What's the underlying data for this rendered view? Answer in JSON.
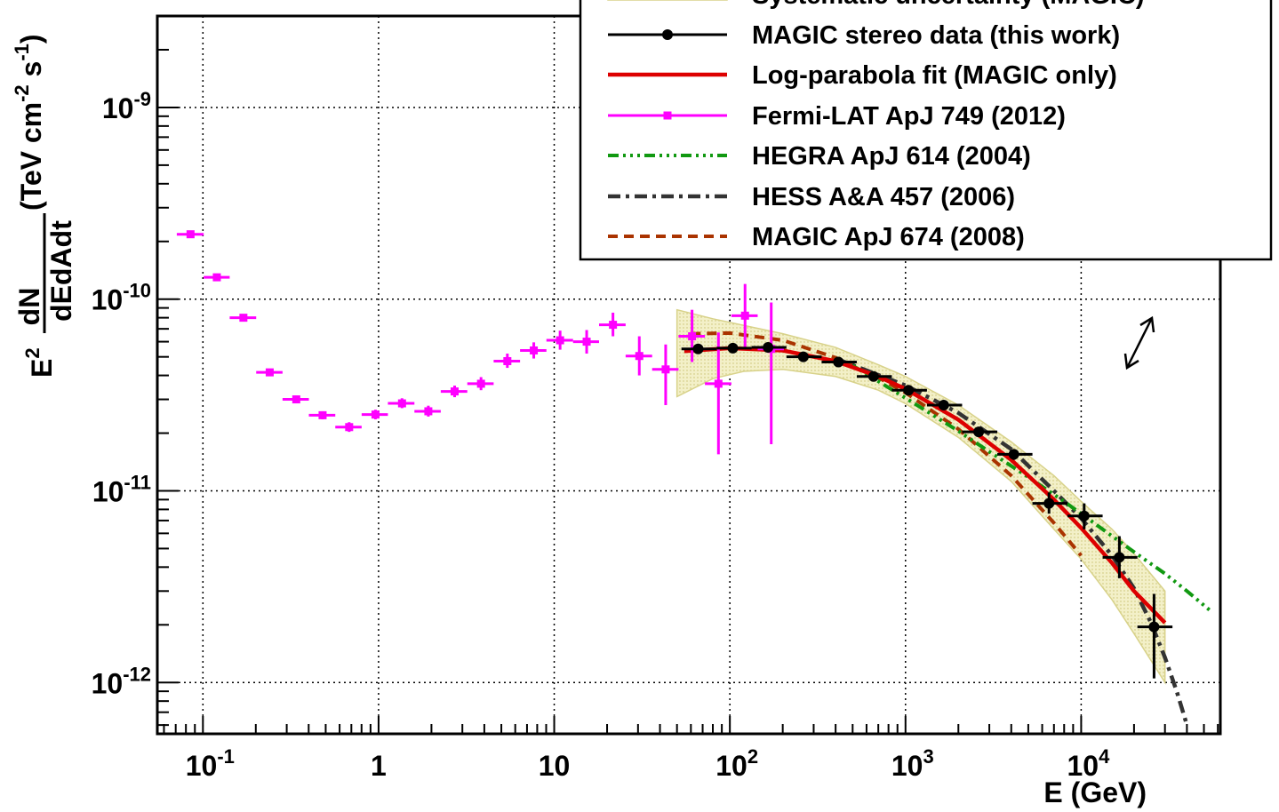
{
  "chart_data": {
    "type": "scatter",
    "xscale": "log",
    "yscale": "log",
    "xlim": [
      0.055,
      62000
    ],
    "ylim": [
      5.4e-13,
      3e-09
    ],
    "grid": true,
    "xlabel": "E (GeV)",
    "ylabel": {
      "e2": "E",
      "e2_sup": "2",
      "frac_num": "dN",
      "frac_den": "dEdAdt",
      "units_pre": "(TeV cm",
      "units_sup1": "-2",
      "units_mid": " s",
      "units_sup2": "-1",
      "units_post": ")"
    },
    "x_ticks": [
      {
        "value": 0.1,
        "base": "10",
        "exp": "-1"
      },
      {
        "value": 1,
        "base": "1",
        "exp": ""
      },
      {
        "value": 10,
        "base": "10",
        "exp": ""
      },
      {
        "value": 100,
        "base": "10",
        "exp": "2"
      },
      {
        "value": 1000,
        "base": "10",
        "exp": "3"
      },
      {
        "value": 10000,
        "base": "10",
        "exp": "4"
      }
    ],
    "y_ticks": [
      {
        "value": 1e-12,
        "base": "10",
        "exp": "-12"
      },
      {
        "value": 1e-11,
        "base": "10",
        "exp": "-11"
      },
      {
        "value": 1e-10,
        "base": "10",
        "exp": "-10"
      },
      {
        "value": 1e-09,
        "base": "10",
        "exp": "-9"
      }
    ],
    "legend": {
      "placement": "top-right",
      "entries": [
        {
          "key": "sys",
          "label": "Systematic uncertainty (MAGIC)"
        },
        {
          "key": "magic_stereo",
          "label": "MAGIC stereo data (this work)"
        },
        {
          "key": "logparabola",
          "label": "Log-parabola fit (MAGIC only)"
        },
        {
          "key": "fermi",
          "label": "Fermi-LAT ApJ 749 (2012)"
        },
        {
          "key": "hegra",
          "label": "HEGRA ApJ 614 (2004)"
        },
        {
          "key": "hess",
          "label": "HESS  A&A 457 (2006)"
        },
        {
          "key": "magic2008",
          "label": "MAGIC ApJ 674 (2008)"
        }
      ]
    },
    "colors": {
      "fermi": "#ff00ff",
      "magic_stereo": "#000000",
      "logparabola": "#dd0000",
      "hegra": "#119911",
      "hess": "#333333",
      "magic2008": "#aa3300",
      "band_fill": "#f3f0c8",
      "band_stroke": "#d8d28a",
      "grid": "#000000"
    },
    "series": [
      {
        "key": "fermi",
        "points": [
          {
            "x": 0.085,
            "y": 2.18e-10,
            "xlo": 0.071,
            "xhi": 0.101,
            "ylo": 2.1e-10,
            "yhi": 2.26e-10
          },
          {
            "x": 0.12,
            "y": 1.3e-10,
            "xlo": 0.101,
            "xhi": 0.142,
            "ylo": 1.25e-10,
            "yhi": 1.35e-10
          },
          {
            "x": 0.17,
            "y": 8e-11,
            "xlo": 0.142,
            "xhi": 0.201,
            "ylo": 7.7e-11,
            "yhi": 8.3e-11
          },
          {
            "x": 0.24,
            "y": 4.15e-11,
            "xlo": 0.201,
            "xhi": 0.284,
            "ylo": 3.98e-11,
            "yhi": 4.33e-11
          },
          {
            "x": 0.34,
            "y": 3e-11,
            "xlo": 0.284,
            "xhi": 0.401,
            "ylo": 2.86e-11,
            "yhi": 3.14e-11
          },
          {
            "x": 0.48,
            "y": 2.48e-11,
            "xlo": 0.401,
            "xhi": 0.567,
            "ylo": 2.36e-11,
            "yhi": 2.6e-11
          },
          {
            "x": 0.68,
            "y": 2.15e-11,
            "xlo": 0.567,
            "xhi": 0.801,
            "ylo": 2.03e-11,
            "yhi": 2.28e-11
          },
          {
            "x": 0.96,
            "y": 2.5e-11,
            "xlo": 0.801,
            "xhi": 1.13,
            "ylo": 2.36e-11,
            "yhi": 2.65e-11
          },
          {
            "x": 1.36,
            "y": 2.86e-11,
            "xlo": 1.13,
            "xhi": 1.6,
            "ylo": 2.7e-11,
            "yhi": 3.04e-11
          },
          {
            "x": 1.92,
            "y": 2.6e-11,
            "xlo": 1.6,
            "xhi": 2.26,
            "ylo": 2.44e-11,
            "yhi": 2.78e-11
          },
          {
            "x": 2.71,
            "y": 3.3e-11,
            "xlo": 2.26,
            "xhi": 3.2,
            "ylo": 3.08e-11,
            "yhi": 3.54e-11
          },
          {
            "x": 3.83,
            "y": 3.62e-11,
            "xlo": 3.2,
            "xhi": 4.52,
            "ylo": 3.35e-11,
            "yhi": 3.92e-11
          },
          {
            "x": 5.41,
            "y": 4.75e-11,
            "xlo": 4.52,
            "xhi": 6.39,
            "ylo": 4.38e-11,
            "yhi": 5.2e-11
          },
          {
            "x": 7.65,
            "y": 5.4e-11,
            "xlo": 6.39,
            "xhi": 9.03,
            "ylo": 4.9e-11,
            "yhi": 5.95e-11
          },
          {
            "x": 10.8,
            "y": 6.1e-11,
            "xlo": 9.03,
            "xhi": 12.8,
            "ylo": 5.45e-11,
            "yhi": 6.85e-11
          },
          {
            "x": 15.3,
            "y": 6e-11,
            "xlo": 12.8,
            "xhi": 18.0,
            "ylo": 5.2e-11,
            "yhi": 6.9e-11
          },
          {
            "x": 21.6,
            "y": 7.35e-11,
            "xlo": 18.0,
            "xhi": 25.5,
            "ylo": 6.4e-11,
            "yhi": 8.5e-11
          },
          {
            "x": 30.5,
            "y": 5.05e-11,
            "xlo": 25.5,
            "xhi": 36.1,
            "ylo": 4e-11,
            "yhi": 6.4e-11
          },
          {
            "x": 43.1,
            "y": 4.3e-11,
            "xlo": 36.1,
            "xhi": 51.0,
            "ylo": 2.8e-11,
            "yhi": 5.8e-11
          },
          {
            "x": 60.9,
            "y": 6.4e-11,
            "xlo": 51.0,
            "xhi": 72.1,
            "ylo": 4.7e-11,
            "yhi": 8.8e-11
          },
          {
            "x": 86.1,
            "y": 3.62e-11,
            "xlo": 72.1,
            "xhi": 102,
            "ylo": 1.55e-11,
            "yhi": 6.7e-11
          },
          {
            "x": 122,
            "y": 8.2e-11,
            "xlo": 102,
            "xhi": 144,
            "ylo": 5.5e-11,
            "yhi": 1.2e-10
          },
          {
            "x": 172,
            "y": 5.5e-11,
            "xlo": 144,
            "xhi": 203,
            "ylo": 1.75e-11,
            "yhi": 9.6e-11
          }
        ]
      },
      {
        "key": "magic_stereo",
        "points": [
          {
            "x": 66,
            "y": 5.5e-11,
            "xlo": 53,
            "xhi": 84,
            "ylo": 5.2e-11,
            "yhi": 5.8e-11
          },
          {
            "x": 104,
            "y": 5.55e-11,
            "xlo": 84,
            "xhi": 133,
            "ylo": 5.3e-11,
            "yhi": 5.8e-11
          },
          {
            "x": 165,
            "y": 5.6e-11,
            "xlo": 133,
            "xhi": 210,
            "ylo": 5.4e-11,
            "yhi": 5.8e-11
          },
          {
            "x": 262,
            "y": 5e-11,
            "xlo": 210,
            "xhi": 333,
            "ylo": 4.85e-11,
            "yhi": 5.15e-11
          },
          {
            "x": 415,
            "y": 4.7e-11,
            "xlo": 333,
            "xhi": 528,
            "ylo": 4.55e-11,
            "yhi": 4.85e-11
          },
          {
            "x": 658,
            "y": 3.95e-11,
            "xlo": 528,
            "xhi": 836,
            "ylo": 3.82e-11,
            "yhi": 4.08e-11
          },
          {
            "x": 1040,
            "y": 3.35e-11,
            "xlo": 836,
            "xhi": 1325,
            "ylo": 3.22e-11,
            "yhi": 3.48e-11
          },
          {
            "x": 1650,
            "y": 2.8e-11,
            "xlo": 1325,
            "xhi": 2100,
            "ylo": 2.68e-11,
            "yhi": 2.92e-11
          },
          {
            "x": 2610,
            "y": 2.03e-11,
            "xlo": 2100,
            "xhi": 3330,
            "ylo": 1.93e-11,
            "yhi": 2.13e-11
          },
          {
            "x": 4140,
            "y": 1.55e-11,
            "xlo": 3330,
            "xhi": 5280,
            "ylo": 1.45e-11,
            "yhi": 1.65e-11
          },
          {
            "x": 6560,
            "y": 8.6e-12,
            "xlo": 5280,
            "xhi": 8360,
            "ylo": 7.6e-12,
            "yhi": 9.8e-12
          },
          {
            "x": 10400,
            "y": 7.4e-12,
            "xlo": 8360,
            "xhi": 13250,
            "ylo": 6.3e-12,
            "yhi": 8.6e-12
          },
          {
            "x": 16500,
            "y": 4.5e-12,
            "xlo": 13250,
            "xhi": 20900,
            "ylo": 3.5e-12,
            "yhi": 5.8e-12
          },
          {
            "x": 26000,
            "y": 1.95e-12,
            "xlo": 20900,
            "xhi": 33100,
            "ylo": 1.05e-12,
            "yhi": 2.9e-12
          }
        ]
      },
      {
        "key": "logparabola",
        "curve": [
          [
            55,
            5.35e-11
          ],
          [
            100,
            5.55e-11
          ],
          [
            200,
            5.4e-11
          ],
          [
            400,
            4.75e-11
          ],
          [
            700,
            3.95e-11
          ],
          [
            1000,
            3.4e-11
          ],
          [
            2000,
            2.35e-11
          ],
          [
            4000,
            1.45e-11
          ],
          [
            7000,
            9e-12
          ],
          [
            10000,
            6.4e-12
          ],
          [
            15000,
            4.2e-12
          ],
          [
            20000,
            3e-12
          ],
          [
            30000,
            2.05e-12
          ]
        ]
      },
      {
        "key": "hegra",
        "curve": [
          [
            500,
            4.5e-11
          ],
          [
            1000,
            3.05e-11
          ],
          [
            2000,
            2.05e-11
          ],
          [
            3000,
            1.6e-11
          ],
          [
            5000,
            1.18e-11
          ],
          [
            8000,
            8.8e-12
          ],
          [
            10000,
            7.6e-12
          ],
          [
            15000,
            5.8e-12
          ],
          [
            20000,
            4.8e-12
          ],
          [
            30000,
            3.7e-12
          ],
          [
            40000,
            3e-12
          ],
          [
            55000,
            2.35e-12
          ]
        ]
      },
      {
        "key": "hess",
        "curve": [
          [
            400,
            4.9e-11
          ],
          [
            1000,
            3.55e-11
          ],
          [
            2000,
            2.55e-11
          ],
          [
            4000,
            1.65e-11
          ],
          [
            7000,
            1e-11
          ],
          [
            10000,
            7.2e-12
          ],
          [
            15000,
            4.6e-12
          ],
          [
            20000,
            3.1e-12
          ],
          [
            25000,
            2.05e-12
          ],
          [
            30000,
            1.35e-12
          ],
          [
            35000,
            9e-13
          ],
          [
            40000,
            6e-13
          ]
        ]
      },
      {
        "key": "magic2008",
        "curve": [
          [
            60,
            6.6e-11
          ],
          [
            100,
            6.65e-11
          ],
          [
            200,
            6.1e-11
          ],
          [
            400,
            4.95e-11
          ],
          [
            700,
            3.9e-11
          ],
          [
            1000,
            3.25e-11
          ],
          [
            2000,
            2.1e-11
          ],
          [
            4000,
            1.2e-11
          ],
          [
            7000,
            6.8e-12
          ],
          [
            10000,
            4.6e-12
          ]
        ]
      },
      {
        "key": "sys",
        "band": {
          "x": [
            50,
            80,
            120,
            200,
            400,
            700,
            1000,
            2000,
            4000,
            7000,
            10000,
            15000,
            20000,
            30000
          ],
          "upper": [
            8.8e-11,
            7.9e-11,
            7.3e-11,
            6.6e-11,
            5.6e-11,
            4.55e-11,
            3.95e-11,
            2.8e-11,
            1.8e-11,
            1.2e-11,
            8.8e-12,
            6.3e-12,
            4.7e-12,
            3e-12
          ],
          "lower": [
            3.1e-11,
            3.85e-11,
            4.2e-11,
            4.3e-11,
            3.95e-11,
            3.35e-11,
            2.85e-11,
            1.9e-11,
            1.12e-11,
            6.3e-12,
            4.4e-12,
            2.7e-12,
            1.8e-12,
            1e-12
          ]
        }
      }
    ]
  }
}
